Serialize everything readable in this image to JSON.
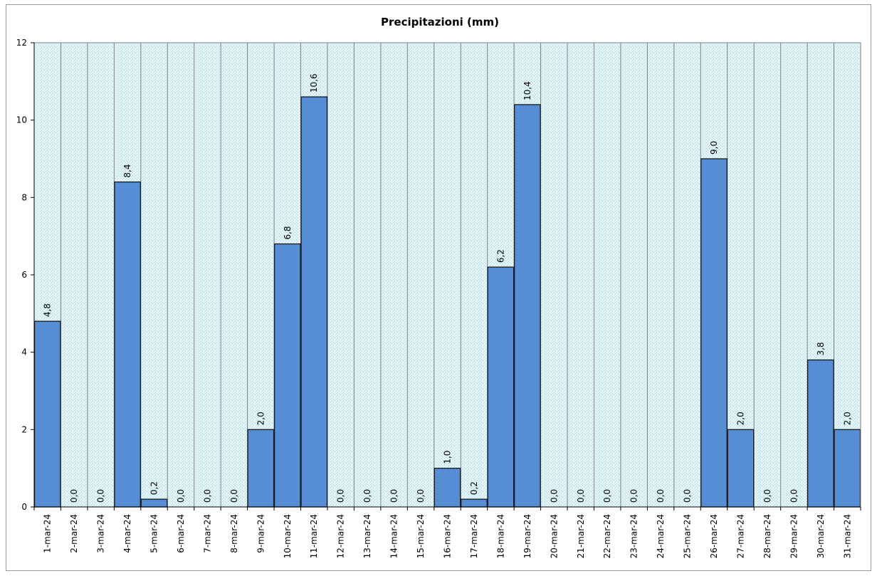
{
  "chart_data": {
    "type": "bar",
    "title": "Precipitazioni  (mm)",
    "xlabel": "",
    "ylabel": "",
    "ylim": [
      0,
      12
    ],
    "yticks": [
      "0",
      "2",
      "4",
      "6",
      "8",
      "10",
      "12"
    ],
    "grid": true,
    "legend": "none",
    "colors": {
      "bar": "#558ed5",
      "bar_edge": "#1a1a1a",
      "plot_bg": "#d9eef2",
      "grid": "#808080"
    },
    "categories": [
      "1-mar-24",
      "2-mar-24",
      "3-mar-24",
      "4-mar-24",
      "5-mar-24",
      "6-mar-24",
      "7-mar-24",
      "8-mar-24",
      "9-mar-24",
      "10-mar-24",
      "11-mar-24",
      "12-mar-24",
      "13-mar-24",
      "14-mar-24",
      "15-mar-24",
      "16-mar-24",
      "17-mar-24",
      "18-mar-24",
      "19-mar-24",
      "20-mar-24",
      "21-mar-24",
      "22-mar-24",
      "23-mar-24",
      "24-mar-24",
      "25-mar-24",
      "26-mar-24",
      "27-mar-24",
      "28-mar-24",
      "29-mar-24",
      "30-mar-24",
      "31-mar-24"
    ],
    "values": [
      4.8,
      0,
      0,
      8.4,
      0.2,
      0,
      0,
      0,
      2.0,
      6.8,
      10.6,
      0,
      0,
      0,
      0,
      1.0,
      0.2,
      6.2,
      10.4,
      0,
      0,
      0,
      0,
      0,
      0,
      9.0,
      2.0,
      0,
      0,
      3.8,
      2.0
    ],
    "value_labels": [
      "4,8",
      "0,0",
      "0,0",
      "8,4",
      "0,2",
      "0,0",
      "0,0",
      "0,0",
      "2,0",
      "6,8",
      "10,6",
      "0,0",
      "0,0",
      "0,0",
      "0,0",
      "1,0",
      "0,2",
      "6,2",
      "10,4",
      "0,0",
      "0,0",
      "0,0",
      "0,0",
      "0,0",
      "0,0",
      "9,0",
      "2,0",
      "0,0",
      "0,0",
      "3,8",
      "2,0"
    ]
  }
}
